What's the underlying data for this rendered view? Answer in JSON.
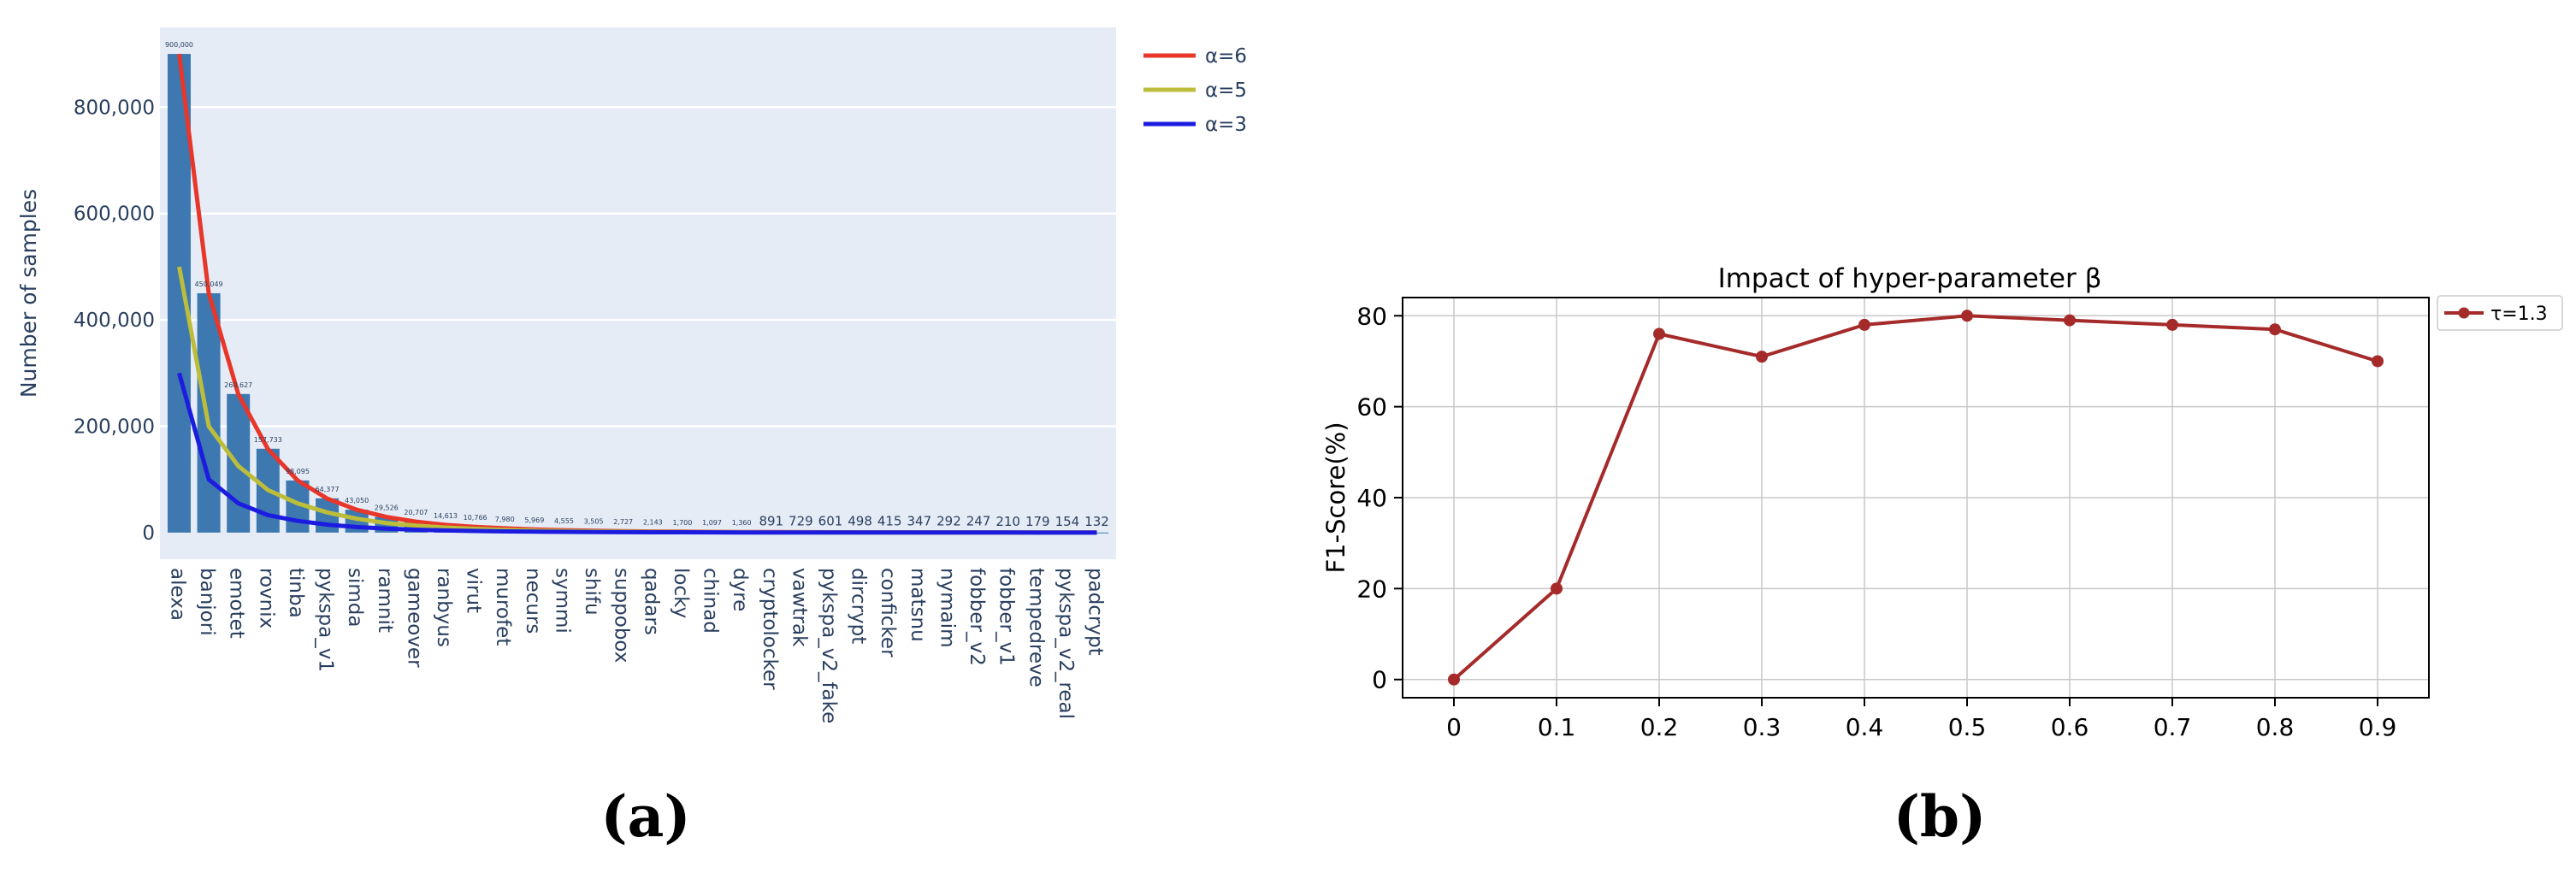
{
  "colors": {
    "bar": "#3d78b0",
    "plot_bg": "#e5ecf6",
    "tick_text": "#2a3f5f",
    "alpha6": "#e8362a",
    "alpha5": "#bcbd3b",
    "alpha3": "#1c1ce0",
    "line_b": "#a52a2a",
    "grid_b": "#c8c8c8"
  },
  "chart_data": [
    {
      "type": "bar",
      "ylabel": "Number of samples",
      "ylim": [
        -50000,
        950000
      ],
      "yticks": [
        0,
        200000,
        400000,
        600000,
        800000
      ],
      "ytick_labels": [
        "0",
        "200,000",
        "400,000",
        "600,000",
        "800,000"
      ],
      "grid": true,
      "legend_position": "outside-top-right",
      "categories": [
        "alexa",
        "banjori",
        "emotet",
        "rovnix",
        "tinba",
        "pykspa_v1",
        "simda",
        "ramnit",
        "gameover",
        "ranbyus",
        "virut",
        "murofet",
        "necurs",
        "symmi",
        "shifu",
        "suppobox",
        "qadars",
        "locky",
        "chinad",
        "dyre",
        "cryptolocker",
        "vawtrak",
        "pykspa_v2_fake",
        "dircrypt",
        "conficker",
        "matsnu",
        "nymaim",
        "fobber_v2",
        "fobber_v1",
        "tempedreve",
        "pykspa_v2_real",
        "padcrypt"
      ],
      "values": [
        900000,
        450049,
        260627,
        157733,
        98095,
        64377,
        43050,
        29526,
        20707,
        14613,
        10766,
        7980,
        5969,
        4555,
        3505,
        2727,
        2143,
        1700,
        1097,
        1360,
        891,
        729,
        601,
        498,
        415,
        347,
        292,
        247,
        210,
        179,
        154,
        132
      ],
      "value_labels": [
        "900,000",
        "450,049",
        "260,627",
        "157,733",
        "98,095",
        "64,377",
        "43,050",
        "29,526",
        "20,707",
        "14,613",
        "10,766",
        "7,980",
        "5,969",
        "4,555",
        "3,505",
        "2,727",
        "2,143",
        "1,700",
        "1,097",
        "1,360",
        "891",
        "729",
        "601",
        "498",
        "415",
        "347",
        "292",
        "247",
        "210",
        "179",
        "154",
        "132"
      ],
      "series": [
        {
          "name": "α=6",
          "values": [
            900000,
            450000,
            260000,
            157000,
            98000,
            64000,
            43000,
            29500,
            20500,
            14500,
            10700,
            8000,
            6000,
            4500,
            3500,
            2700,
            2100,
            1700,
            1300,
            1100,
            890,
            730,
            600,
            500,
            415,
            347,
            292,
            247,
            210,
            179,
            154,
            132
          ]
        },
        {
          "name": "α=5",
          "values": [
            500000,
            200000,
            125000,
            80000,
            55000,
            38000,
            26000,
            18000,
            13000,
            9500,
            7000,
            5200,
            3900,
            2900,
            2200,
            1700,
            1300,
            1000,
            800,
            650,
            520,
            420,
            340,
            280,
            230,
            190,
            160,
            135,
            115,
            98,
            84,
            72
          ]
        },
        {
          "name": "α=3",
          "values": [
            300000,
            100000,
            55000,
            33000,
            22000,
            15000,
            10500,
            7500,
            5500,
            4000,
            3000,
            2300,
            1800,
            1400,
            1100,
            870,
            700,
            570,
            470,
            390,
            320,
            270,
            230,
            195,
            165,
            140,
            120,
            104,
            90,
            78,
            68,
            60
          ]
        }
      ],
      "panel_label": "(a)"
    },
    {
      "type": "line",
      "title": "Impact of hyper-parameter β",
      "xlabel": "",
      "ylabel": "F1-Score(%)",
      "x": [
        0,
        0.1,
        0.2,
        0.3,
        0.4,
        0.5,
        0.6,
        0.7,
        0.8,
        0.9
      ],
      "xtick_labels": [
        "0",
        "0.1",
        "0.2",
        "0.3",
        "0.4",
        "0.5",
        "0.6",
        "0.7",
        "0.8",
        "0.9"
      ],
      "xlim": [
        -0.05,
        0.95
      ],
      "ylim": [
        -4,
        84
      ],
      "yticks": [
        0,
        20,
        40,
        60,
        80
      ],
      "ytick_labels": [
        "0",
        "20",
        "40",
        "60",
        "80"
      ],
      "grid": true,
      "legend_position": "outside-top-right",
      "series": [
        {
          "name": "τ=1.3",
          "values": [
            0,
            20,
            76,
            71,
            78,
            80,
            79,
            78,
            77,
            70
          ]
        }
      ],
      "panel_label": "(b)"
    }
  ]
}
